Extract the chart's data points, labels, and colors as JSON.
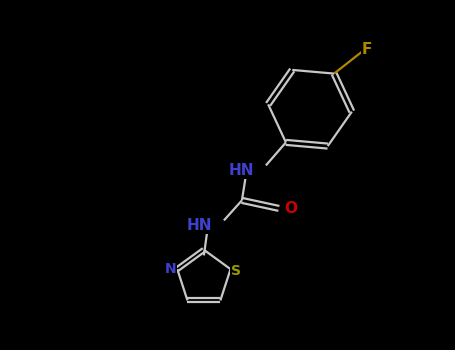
{
  "background_color": "#000000",
  "bond_color": "#c8c8c8",
  "atom_colors": {
    "N": "#4040cc",
    "O": "#cc0000",
    "S": "#999900",
    "F": "#b08800",
    "C": "#c8c8c8"
  },
  "figsize": [
    4.55,
    3.5
  ],
  "dpi": 100,
  "lw": 1.6,
  "fs": 10
}
